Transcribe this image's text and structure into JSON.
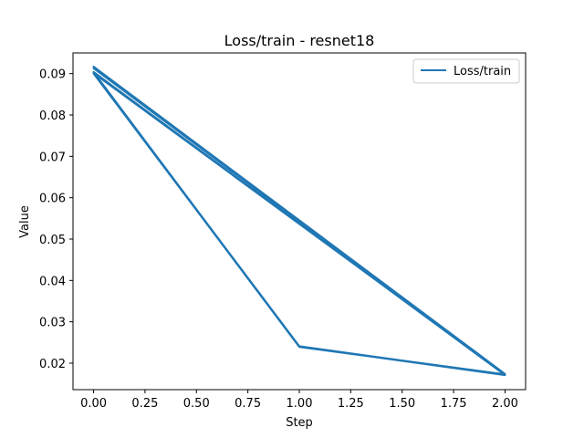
{
  "chart_data": {
    "type": "line",
    "title": "Loss/train - resnet18",
    "xlabel": "Step",
    "ylabel": "Value",
    "xlim": [
      -0.1,
      2.1
    ],
    "ylim": [
      0.0136,
      0.095
    ],
    "x_ticks": [
      0.0,
      0.25,
      0.5,
      0.75,
      1.0,
      1.25,
      1.5,
      1.75,
      2.0
    ],
    "x_tick_labels": [
      "0.00",
      "0.25",
      "0.50",
      "0.75",
      "1.00",
      "1.25",
      "1.50",
      "1.75",
      "2.00"
    ],
    "y_ticks": [
      0.02,
      0.03,
      0.04,
      0.05,
      0.06,
      0.07,
      0.08,
      0.09
    ],
    "y_tick_labels": [
      "0.02",
      "0.03",
      "0.04",
      "0.05",
      "0.06",
      "0.07",
      "0.08",
      "0.09"
    ],
    "grid": false,
    "legend": {
      "position": "top-right",
      "entries": [
        "Loss/train"
      ]
    },
    "series": [
      {
        "name": "Loss/train",
        "color": "#1f77b4",
        "x": [
          0,
          1,
          2,
          0,
          1,
          2,
          0,
          1,
          2,
          0,
          1,
          2,
          0,
          1,
          2,
          0,
          2,
          0,
          2
        ],
        "y": [
          0.09,
          0.024,
          0.0173,
          0.0902,
          0.0241,
          0.0172,
          0.0904,
          0.024,
          0.0171,
          0.0903,
          0.0241,
          0.0172,
          0.0901,
          0.0239,
          0.0173,
          0.0917,
          0.0174,
          0.0913,
          0.0172
        ]
      }
    ]
  }
}
